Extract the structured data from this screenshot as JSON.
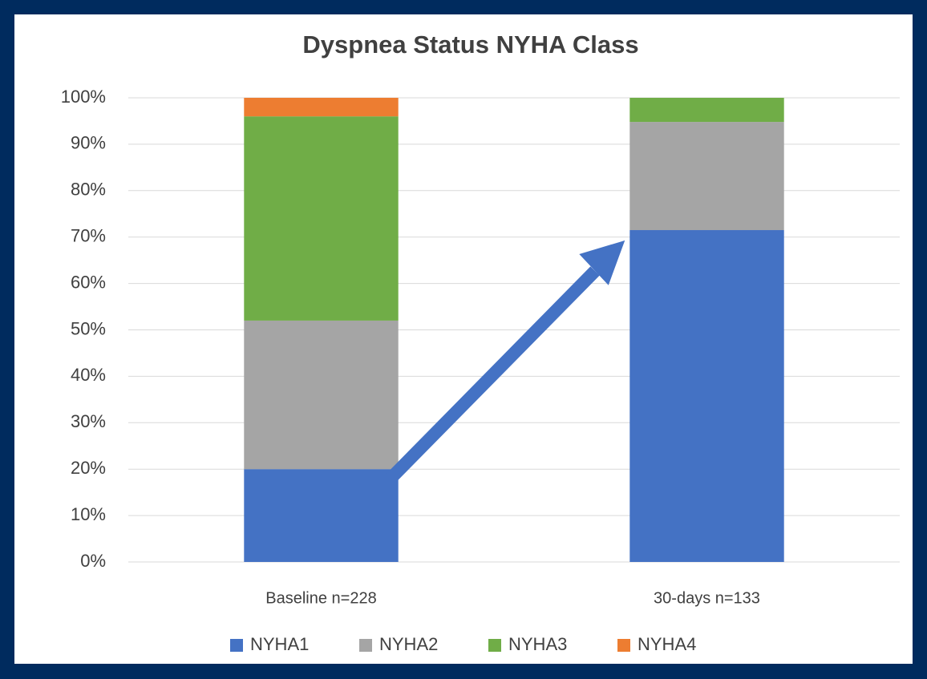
{
  "chart_data": {
    "type": "stacked_bar",
    "title": "Dyspnea Status NYHA Class",
    "categories": [
      "Baseline n=228",
      "30-days n=133"
    ],
    "series": [
      {
        "name": "NYHA1",
        "color": "#4472c4",
        "values": [
          20,
          71.5
        ]
      },
      {
        "name": "NYHA2",
        "color": "#a5a5a5",
        "values": [
          32,
          23.3
        ]
      },
      {
        "name": "NYHA3",
        "color": "#70ad47",
        "values": [
          44,
          5.2
        ]
      },
      {
        "name": "NYHA4",
        "color": "#ed7d31",
        "values": [
          4,
          0
        ]
      }
    ],
    "ylim": [
      0,
      100
    ],
    "yticks": [
      {
        "value": 0,
        "label": "0%"
      },
      {
        "value": 10,
        "label": "10%"
      },
      {
        "value": 20,
        "label": "20%"
      },
      {
        "value": 30,
        "label": "30%"
      },
      {
        "value": 40,
        "label": "40%"
      },
      {
        "value": 50,
        "label": "50%"
      },
      {
        "value": 60,
        "label": "60%"
      },
      {
        "value": 70,
        "label": "70%"
      },
      {
        "value": 80,
        "label": "80%"
      },
      {
        "value": 90,
        "label": "90%"
      },
      {
        "value": 100,
        "label": "100%"
      }
    ],
    "grid": true,
    "legend": "bottom"
  }
}
